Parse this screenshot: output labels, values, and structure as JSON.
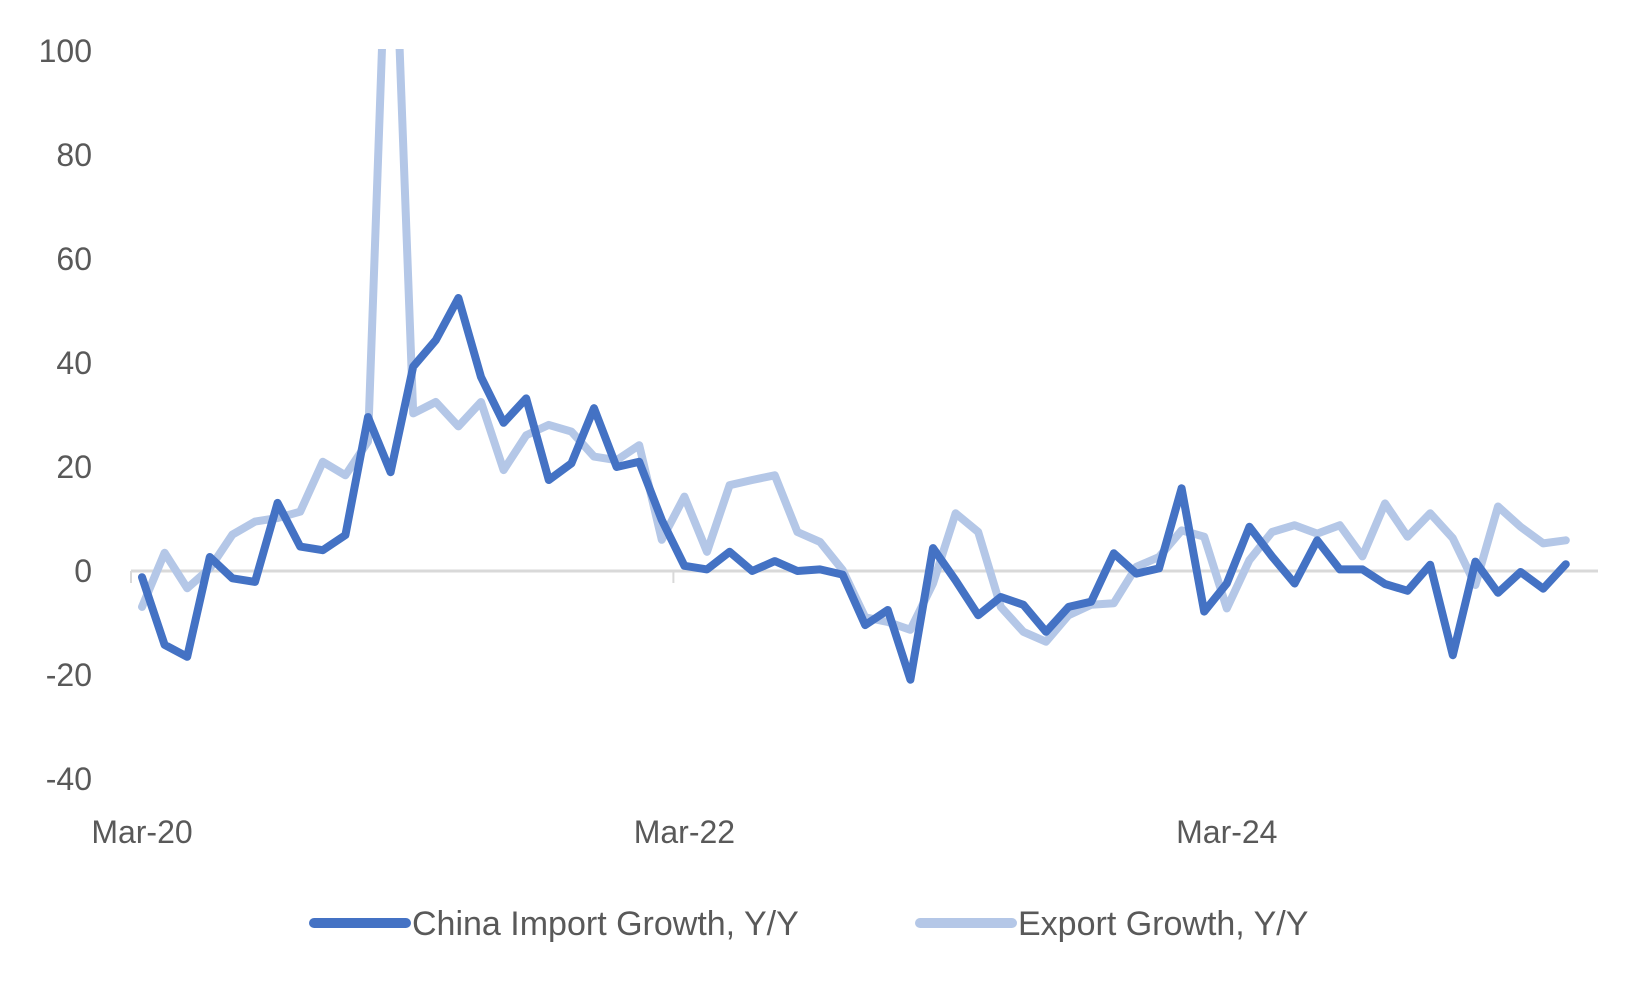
{
  "chart_data": {
    "type": "line",
    "title": "",
    "xlabel": "",
    "ylabel": "",
    "ylim": [
      -40,
      100
    ],
    "yticks": [
      100,
      80,
      60,
      40,
      20,
      0,
      -20,
      -40
    ],
    "xtick_labels": [
      {
        "label": "Mar-20",
        "index": 0
      },
      {
        "label": "Mar-22",
        "index": 24
      },
      {
        "label": "Mar-24",
        "index": 48
      }
    ],
    "grid": false,
    "legend_position": "bottom",
    "x": [
      "Mar-20",
      "Apr-20",
      "May-20",
      "Jun-20",
      "Jul-20",
      "Aug-20",
      "Sep-20",
      "Oct-20",
      "Nov-20",
      "Dec-20",
      "Jan-21",
      "Feb-21",
      "Mar-21",
      "Apr-21",
      "May-21",
      "Jun-21",
      "Jul-21",
      "Aug-21",
      "Sep-21",
      "Oct-21",
      "Nov-21",
      "Dec-21",
      "Jan-22",
      "Feb-22",
      "Mar-22",
      "Apr-22",
      "May-22",
      "Jun-22",
      "Jul-22",
      "Aug-22",
      "Sep-22",
      "Oct-22",
      "Nov-22",
      "Dec-22",
      "Jan-23",
      "Feb-23",
      "Mar-23",
      "Apr-23",
      "May-23",
      "Jun-23",
      "Jul-23",
      "Aug-23",
      "Sep-23",
      "Oct-23",
      "Nov-23",
      "Dec-23",
      "Jan-24",
      "Feb-24",
      "Mar-24",
      "Apr-24",
      "May-24",
      "Jun-24",
      "Jul-24",
      "Aug-24",
      "Sep-24",
      "Oct-24",
      "Nov-24",
      "Dec-24",
      "Jan-25",
      "Feb-25",
      "Mar-25",
      "Apr-25",
      "May-25",
      "Jun-25"
    ],
    "series": [
      {
        "name": "China Import Growth, Y/Y",
        "color": "#4472C4",
        "values": [
          -1.2,
          -14.2,
          -16.5,
          2.7,
          -1.4,
          -2.1,
          13.1,
          4.7,
          4.0,
          6.9,
          29.6,
          19.0,
          39.3,
          44.4,
          52.5,
          37.3,
          28.5,
          33.2,
          17.5,
          20.7,
          31.3,
          20.0,
          21.0,
          9.8,
          1.0,
          0.3,
          3.7,
          0.0,
          1.9,
          0.0,
          0.3,
          -0.7,
          -10.4,
          -7.5,
          -20.9,
          4.4,
          -1.8,
          -8.5,
          -5.0,
          -6.5,
          -11.7,
          -6.9,
          -5.9,
          3.4,
          -0.5,
          0.5,
          15.9,
          -7.8,
          -2.4,
          8.5,
          2.8,
          -2.4,
          5.9,
          0.3,
          0.3,
          -2.5,
          -3.8,
          1.2,
          -16.2,
          1.8,
          -4.2,
          -0.2,
          -3.4,
          1.3
        ]
      },
      {
        "name": "Export Growth, Y/Y",
        "color": "#B4C7E7",
        "values": [
          -6.9,
          3.5,
          -3.3,
          0.5,
          7.0,
          9.5,
          10.2,
          11.4,
          21.0,
          18.4,
          24.9,
          147.0,
          30.3,
          32.5,
          27.8,
          32.5,
          19.4,
          26.1,
          28.1,
          26.8,
          22.0,
          21.3,
          24.2,
          6.0,
          14.3,
          3.7,
          16.5,
          17.5,
          18.4,
          7.5,
          5.6,
          0.2,
          -8.9,
          -9.8,
          -11.3,
          -2.4,
          11.1,
          7.5,
          -6.9,
          -11.7,
          -13.6,
          -8.5,
          -6.5,
          -6.2,
          0.8,
          2.7,
          7.8,
          6.6,
          -7.2,
          2.1,
          7.5,
          8.8,
          7.2,
          8.8,
          2.8,
          13.0,
          6.6,
          11.1,
          6.3,
          -2.7,
          12.4,
          8.5,
          5.3,
          5.9
        ]
      }
    ]
  },
  "legend": {
    "items": [
      {
        "label": "China Import Growth, Y/Y",
        "color": "#4472C4"
      },
      {
        "label": "Export Growth, Y/Y",
        "color": "#B4C7E7"
      }
    ]
  },
  "style": {
    "axis_color": "#D9D9D9",
    "text_color": "#595959"
  }
}
